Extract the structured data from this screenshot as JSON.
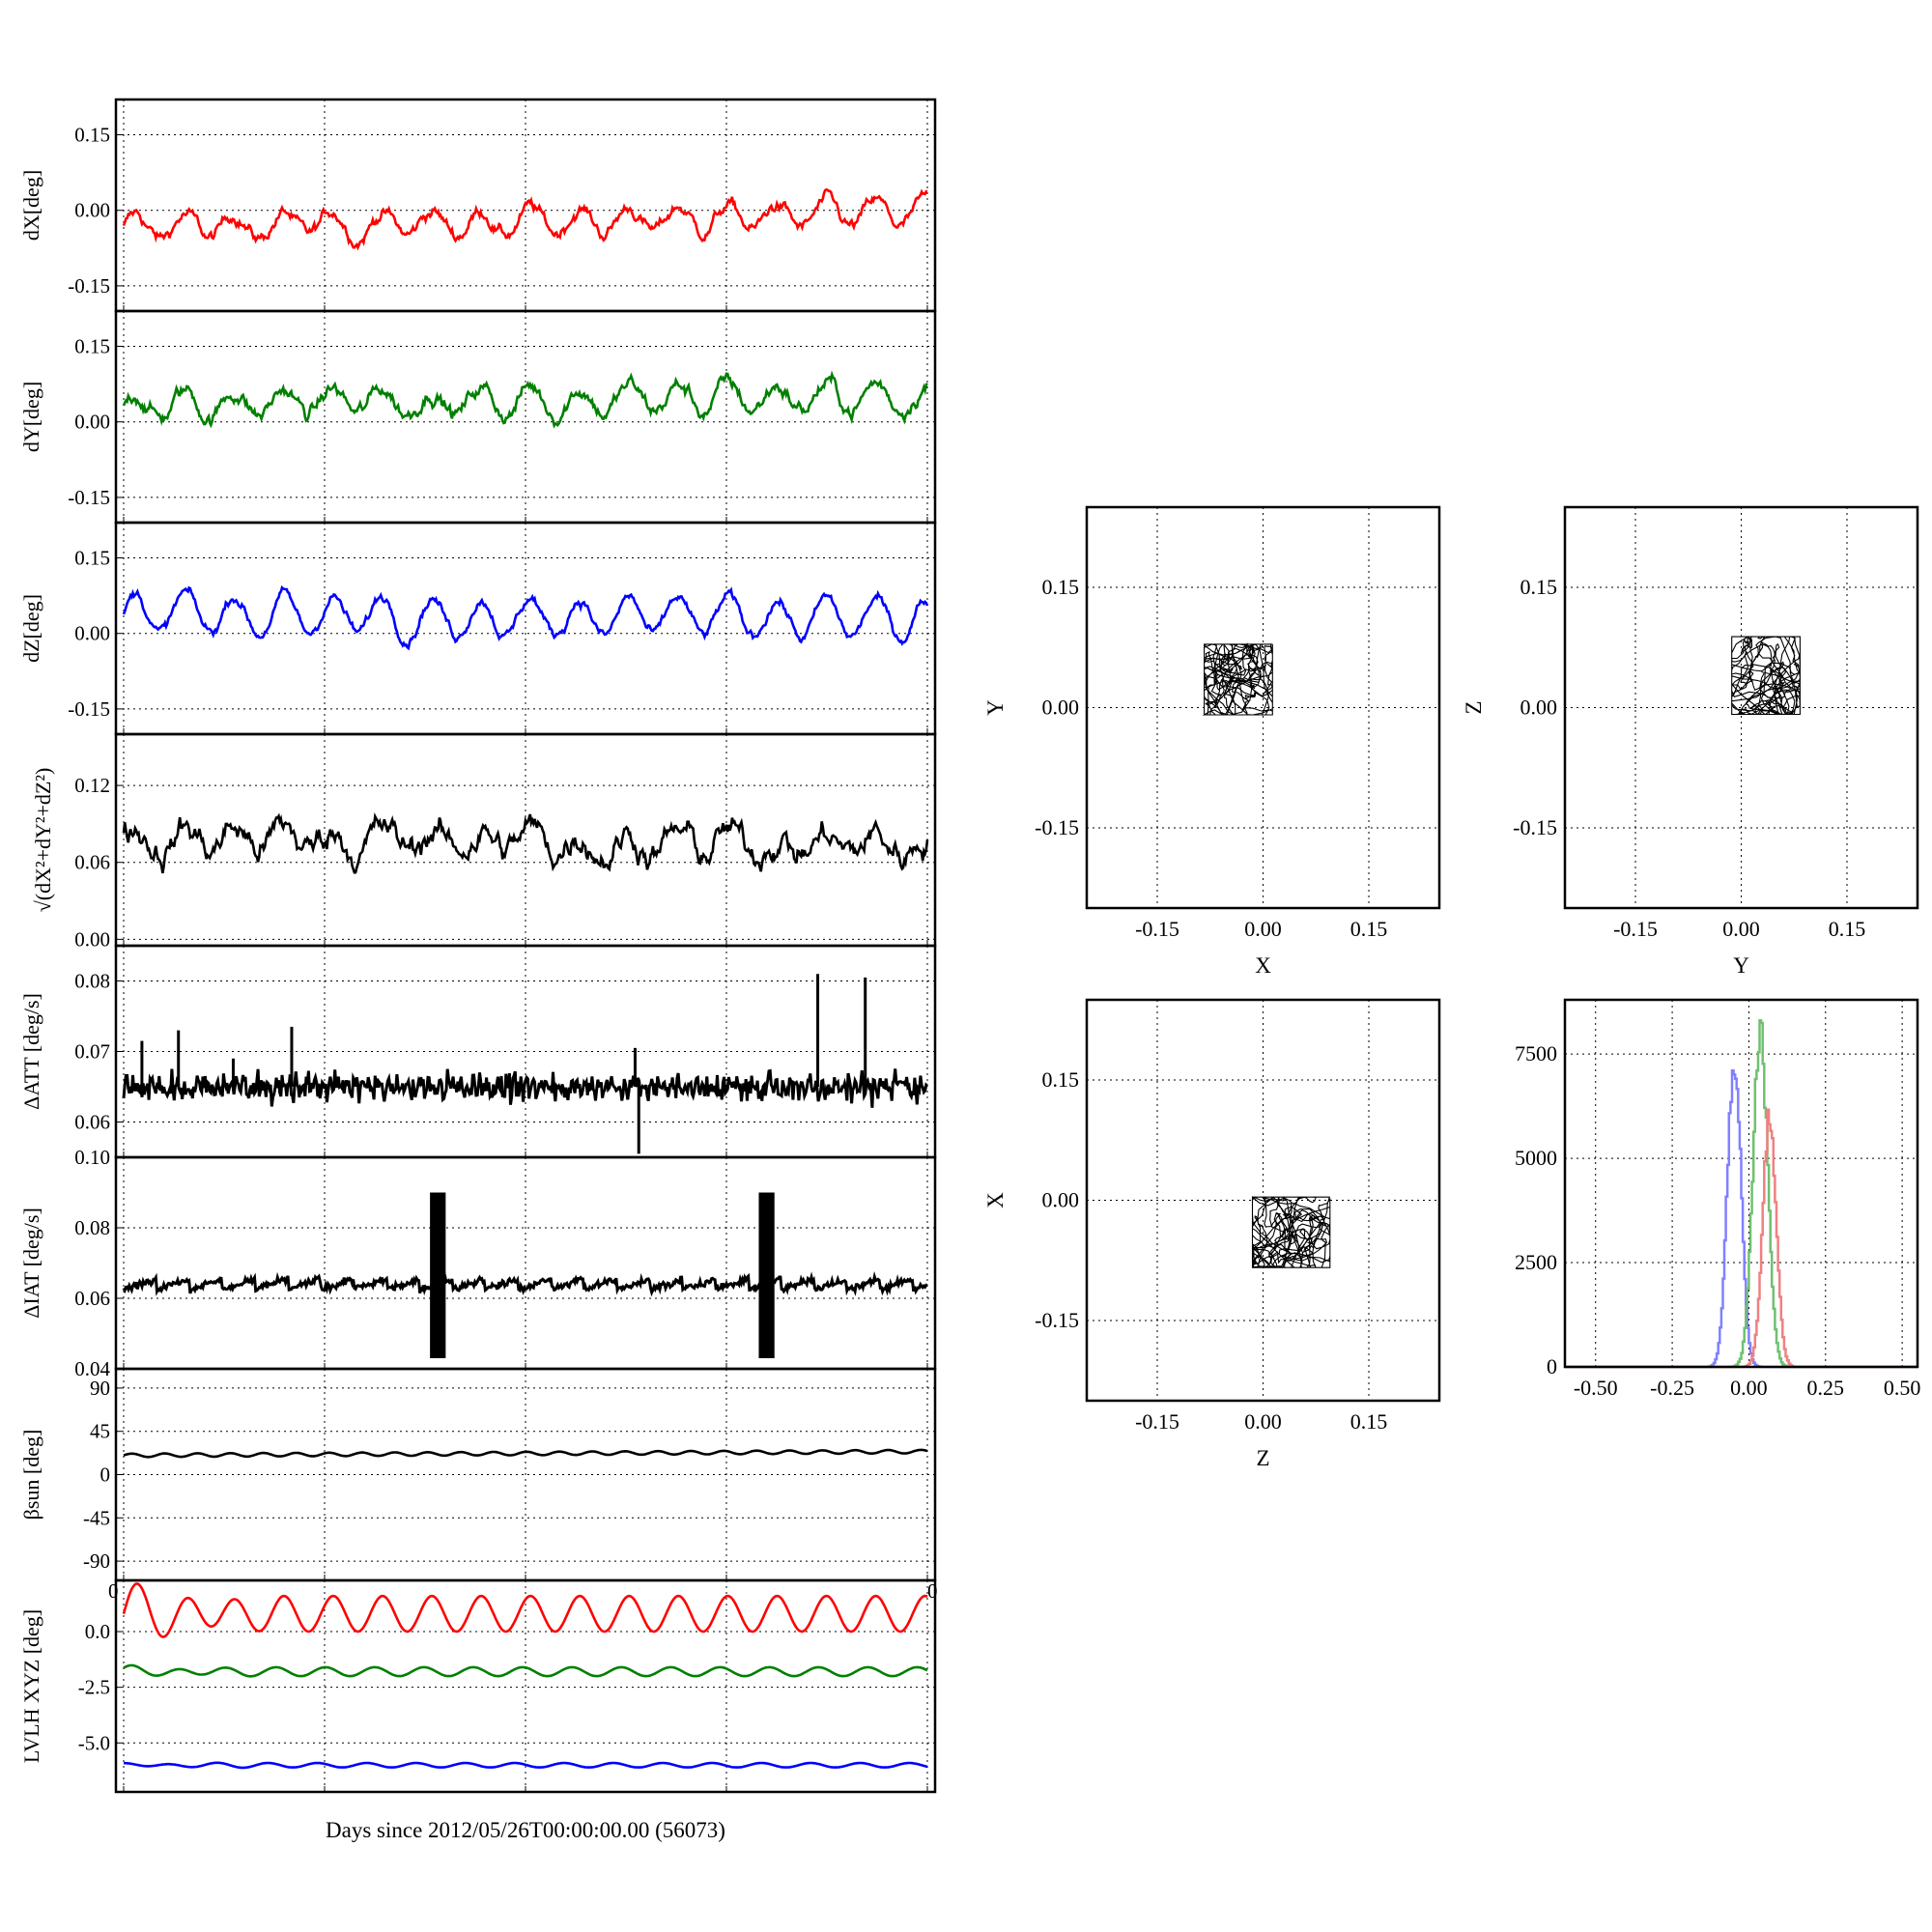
{
  "colors": {
    "red": "#ff0000",
    "green": "#008000",
    "blue": "#0000ff",
    "black": "#000000",
    "hist_red": "#f08080",
    "hist_green": "#70c070",
    "hist_blue": "#8080ff"
  },
  "chart_data": [
    {
      "type": "line",
      "ylabel": "dX[deg]",
      "ylim": [
        -0.2,
        0.22
      ],
      "yticks": [
        "0.15",
        "0.00",
        "-0.15"
      ],
      "ytick_values": [
        0.15,
        0,
        -0.15
      ],
      "x_range": [
        0,
        22
      ],
      "grid": true,
      "series": [
        {
          "color": "red",
          "mean": -0.035,
          "osc_amp": 0.025,
          "period": 1.35,
          "noise": 0.01,
          "trend": 0.0012
        }
      ]
    },
    {
      "type": "line",
      "ylabel": "dY[deg]",
      "ylim": [
        -0.2,
        0.22
      ],
      "yticks": [
        "0.15",
        "0.00",
        "-0.15"
      ],
      "ytick_values": [
        0.15,
        0,
        -0.15
      ],
      "x_range": [
        0,
        22
      ],
      "grid": true,
      "series": [
        {
          "color": "green",
          "mean": 0.035,
          "osc_amp": 0.025,
          "period": 1.35,
          "noise": 0.012,
          "trend": 0.0008
        }
      ]
    },
    {
      "type": "line",
      "ylabel": "dZ[deg]",
      "ylim": [
        -0.2,
        0.22
      ],
      "yticks": [
        "0.15",
        "0.00",
        "-0.15"
      ],
      "ytick_values": [
        0.15,
        0,
        -0.15
      ],
      "x_range": [
        0,
        22
      ],
      "grid": true,
      "series": [
        {
          "color": "blue",
          "mean": 0.04,
          "osc_amp": 0.038,
          "period": 1.35,
          "noise": 0.008,
          "trend": -0.0005
        }
      ]
    },
    {
      "type": "line",
      "ylabel": "√(dX²+dY²+dZ²)",
      "ylim": [
        -0.005,
        0.16
      ],
      "yticks": [
        "0.12",
        "0.06",
        "0.00"
      ],
      "ytick_values": [
        0.12,
        0.06,
        0
      ],
      "x_range": [
        0,
        22
      ],
      "grid": true,
      "series": [
        {
          "color": "black",
          "mean": 0.08,
          "osc_amp": 0.008,
          "period": 1.35,
          "noise": 0.008,
          "trend": -0.0003
        }
      ]
    },
    {
      "type": "line",
      "ylabel": "ΔATT [deg/s]",
      "ylim": [
        0.055,
        0.085
      ],
      "yticks": [
        "0.08",
        "0.07",
        "0.06"
      ],
      "ytick_values": [
        0.08,
        0.07,
        0.06
      ],
      "x_range": [
        0,
        22
      ],
      "grid": true,
      "series": [
        {
          "color": "black",
          "mean": 0.065,
          "osc_amp": 0.0006,
          "period": 0.18,
          "noise": 0.0009,
          "trend": 0
        }
      ]
    },
    {
      "type": "line",
      "ylabel": "ΔIAT [deg/s]",
      "ylim": [
        0.04,
        0.1
      ],
      "yticks": [
        "0.10",
        "0.08",
        "0.06",
        "0.04"
      ],
      "ytick_values": [
        0.1,
        0.08,
        0.06,
        0.04
      ],
      "x_range": [
        0,
        22
      ],
      "grid": true,
      "series": [
        {
          "color": "black",
          "mean": 0.064,
          "osc_amp": 0.0015,
          "period": 0.9,
          "noise": 0.0005,
          "trend": 0
        }
      ]
    },
    {
      "type": "line",
      "ylabel": "βsun [deg]",
      "ylim": [
        -110,
        110
      ],
      "yticks": [
        "90",
        "45",
        "0",
        "-45",
        "-90"
      ],
      "ytick_values": [
        90,
        45,
        0,
        -45,
        -90
      ],
      "x_range": [
        0,
        22
      ],
      "grid": true,
      "x_tick_corner": "0",
      "series": [
        {
          "color": "black",
          "mean": 20,
          "osc_amp": 1.8,
          "period": 0.9,
          "noise": 0,
          "trend": 0.18
        }
      ]
    },
    {
      "type": "line",
      "ylabel": "LVLH XYZ [deg]",
      "ylim": [
        -7.2,
        2.3
      ],
      "yticks": [
        "0.0",
        "-2.5",
        "-5.0"
      ],
      "ytick_values": [
        0,
        -2.5,
        -5
      ],
      "x_range": [
        0,
        22
      ],
      "grid": true,
      "xlabel": "Days since 2012/05/26T00:00:00.00 (56073)",
      "series": [
        {
          "color": "red",
          "mean": 0.8,
          "osc_amp": 0.8,
          "period": 1.35,
          "noise": 0,
          "trend": 0
        },
        {
          "color": "green",
          "mean": -1.8,
          "osc_amp": 0.2,
          "period": 1.35,
          "noise": 0,
          "trend": 0
        },
        {
          "color": "blue",
          "mean": -6.0,
          "osc_amp": 0.1,
          "period": 1.35,
          "noise": 0,
          "trend": 0
        }
      ]
    },
    {
      "type": "scatter",
      "xlabel": "X",
      "ylabel": "Y",
      "xlim": [
        -0.25,
        0.25
      ],
      "ylim": [
        -0.25,
        0.25
      ],
      "xticks": [
        "-0.15",
        "0.00",
        "0.15"
      ],
      "yticks": [
        "0.15",
        "0.00",
        "-0.15"
      ],
      "tick_values": [
        -0.15,
        0,
        0.15
      ],
      "center": [
        -0.035,
        0.035
      ],
      "spread": [
        0.022,
        0.02
      ],
      "grid": true
    },
    {
      "type": "scatter",
      "xlabel": "Y",
      "ylabel": "Z",
      "xlim": [
        -0.25,
        0.25
      ],
      "ylim": [
        -0.25,
        0.25
      ],
      "xticks": [
        "-0.15",
        "0.00",
        "0.15"
      ],
      "yticks": [
        "0.15",
        "0.00",
        "-0.15"
      ],
      "tick_values": [
        -0.15,
        0,
        0.15
      ],
      "center": [
        0.035,
        0.04
      ],
      "spread": [
        0.022,
        0.022
      ],
      "grid": true
    },
    {
      "type": "scatter",
      "xlabel": "Z",
      "ylabel": "X",
      "xlim": [
        -0.25,
        0.25
      ],
      "ylim": [
        -0.25,
        0.25
      ],
      "xticks": [
        "-0.15",
        "0.00",
        "0.15"
      ],
      "yticks": [
        "0.15",
        "0.00",
        "-0.15"
      ],
      "tick_values": [
        -0.15,
        0,
        0.15
      ],
      "center": [
        0.04,
        -0.04
      ],
      "spread": [
        0.025,
        0.02
      ],
      "grid": true
    },
    {
      "type": "histogram",
      "xlim": [
        -0.6,
        0.55
      ],
      "ylim": [
        0,
        8800
      ],
      "xticks": [
        "-0.50",
        "-0.25",
        "0.00",
        "0.25",
        "0.50"
      ],
      "xtick_values": [
        -0.5,
        -0.25,
        0,
        0.25,
        0.5
      ],
      "yticks": [
        "7500",
        "5000",
        "2500",
        "0"
      ],
      "ytick_values": [
        7500,
        5000,
        2500,
        0
      ],
      "grid": true,
      "series": [
        {
          "color": "hist_blue",
          "center": -0.05,
          "width": 0.022,
          "peak": 7900
        },
        {
          "color": "hist_green",
          "center": 0.035,
          "width": 0.024,
          "peak": 8500
        },
        {
          "color": "hist_red",
          "center": 0.065,
          "width": 0.022,
          "peak": 6400
        }
      ]
    }
  ]
}
